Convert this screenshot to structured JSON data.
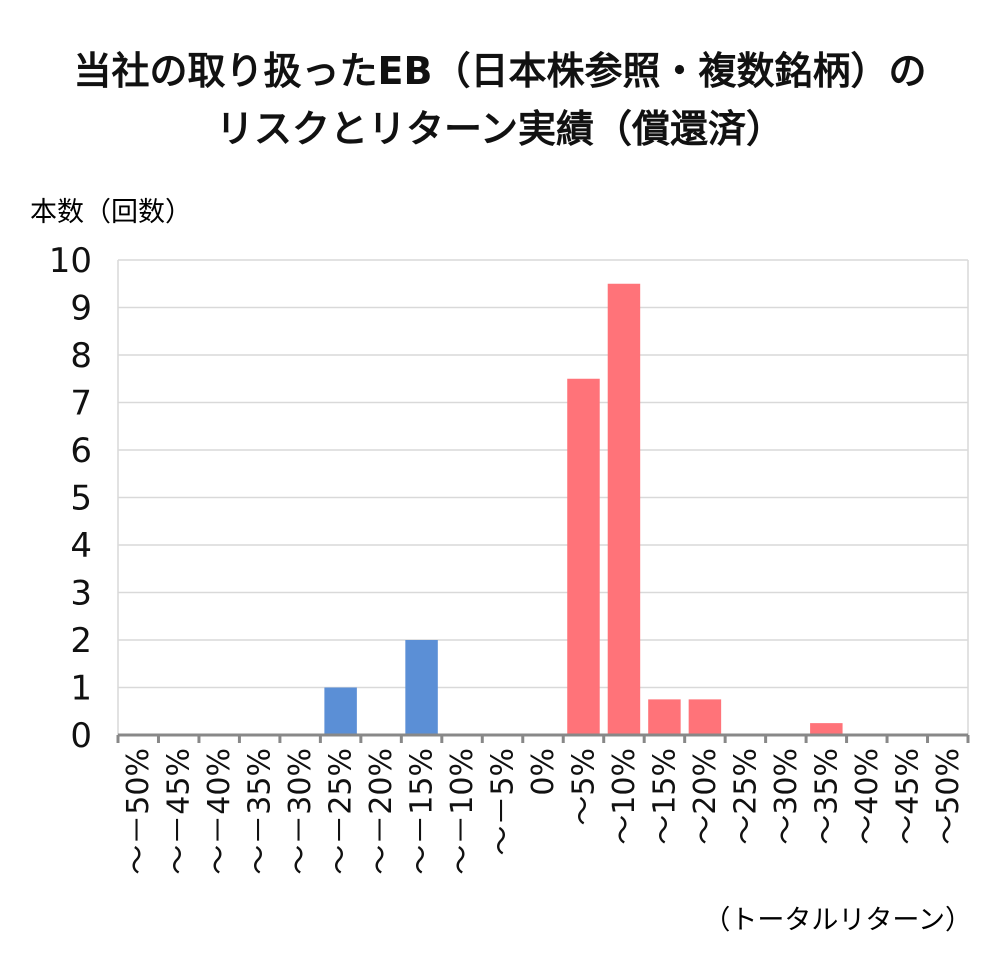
{
  "chart_data": {
    "type": "bar",
    "title_line1": "当社の取り扱ったEB（日本株参照・複数銘柄）の",
    "title_line2": "リスクとリターン実績（償還済）",
    "ylabel": "本数（回数）",
    "xlabel": "（トータルリターン）",
    "ylim": [
      0,
      10
    ],
    "yticks": [
      "0",
      "1",
      "2",
      "3",
      "4",
      "5",
      "6",
      "7",
      "8",
      "9",
      "10"
    ],
    "grid": true,
    "categories": [
      "～－50%",
      "～－45%",
      "～－40%",
      "～－35%",
      "～－30%",
      "～－25%",
      "～－20%",
      "～－15%",
      "～－10%",
      "～－5%",
      "0%",
      "～5%",
      "～10%",
      "～15%",
      "～20%",
      "～25%",
      "～30%",
      "～35%",
      "～40%",
      "～45%",
      "～50%"
    ],
    "values": [
      0,
      0,
      0,
      0,
      0,
      1,
      0,
      2,
      0,
      0,
      0,
      7.5,
      9.5,
      0.75,
      0.75,
      0,
      0,
      0.25,
      0,
      0,
      0
    ],
    "colors": {
      "negative": "#5b8fd6",
      "positive": "#ff7379"
    }
  }
}
